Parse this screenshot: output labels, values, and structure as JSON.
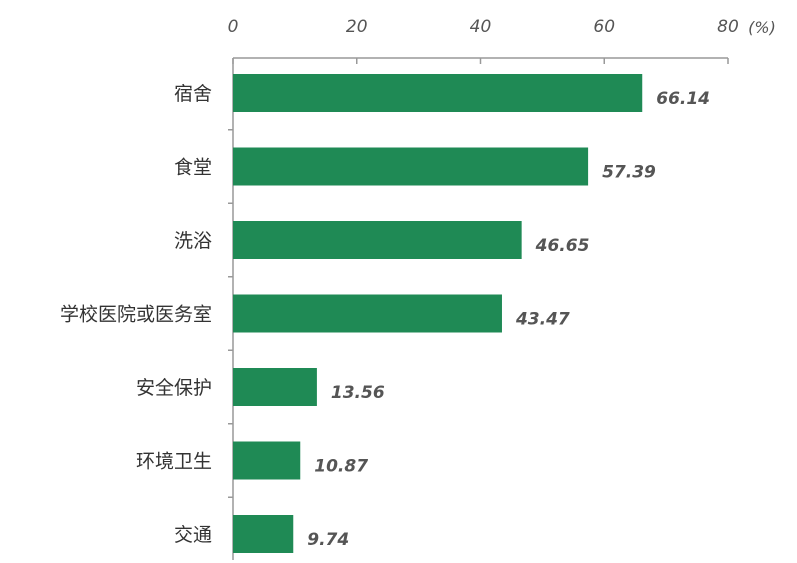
{
  "chart_data": {
    "type": "bar",
    "orientation": "horizontal",
    "categories": [
      "宿舍",
      "食堂",
      "洗浴",
      "学校医院或医务室",
      "安全保护",
      "环境卫生",
      "交通"
    ],
    "values": [
      66.14,
      57.39,
      46.65,
      43.47,
      13.56,
      10.87,
      9.74
    ],
    "value_labels": [
      "66.14",
      "57.39",
      "46.65",
      "43.47",
      "13.56",
      "10.87",
      "9.74"
    ],
    "x_ticks": [
      "0",
      "20",
      "40",
      "60",
      "80"
    ],
    "x_tick_values": [
      0,
      20,
      40,
      60,
      80
    ],
    "unit_label": "(%)",
    "xlim": [
      0,
      80
    ],
    "x_axis_position": "top",
    "grid": false,
    "bar_color": "#1f8a55"
  }
}
